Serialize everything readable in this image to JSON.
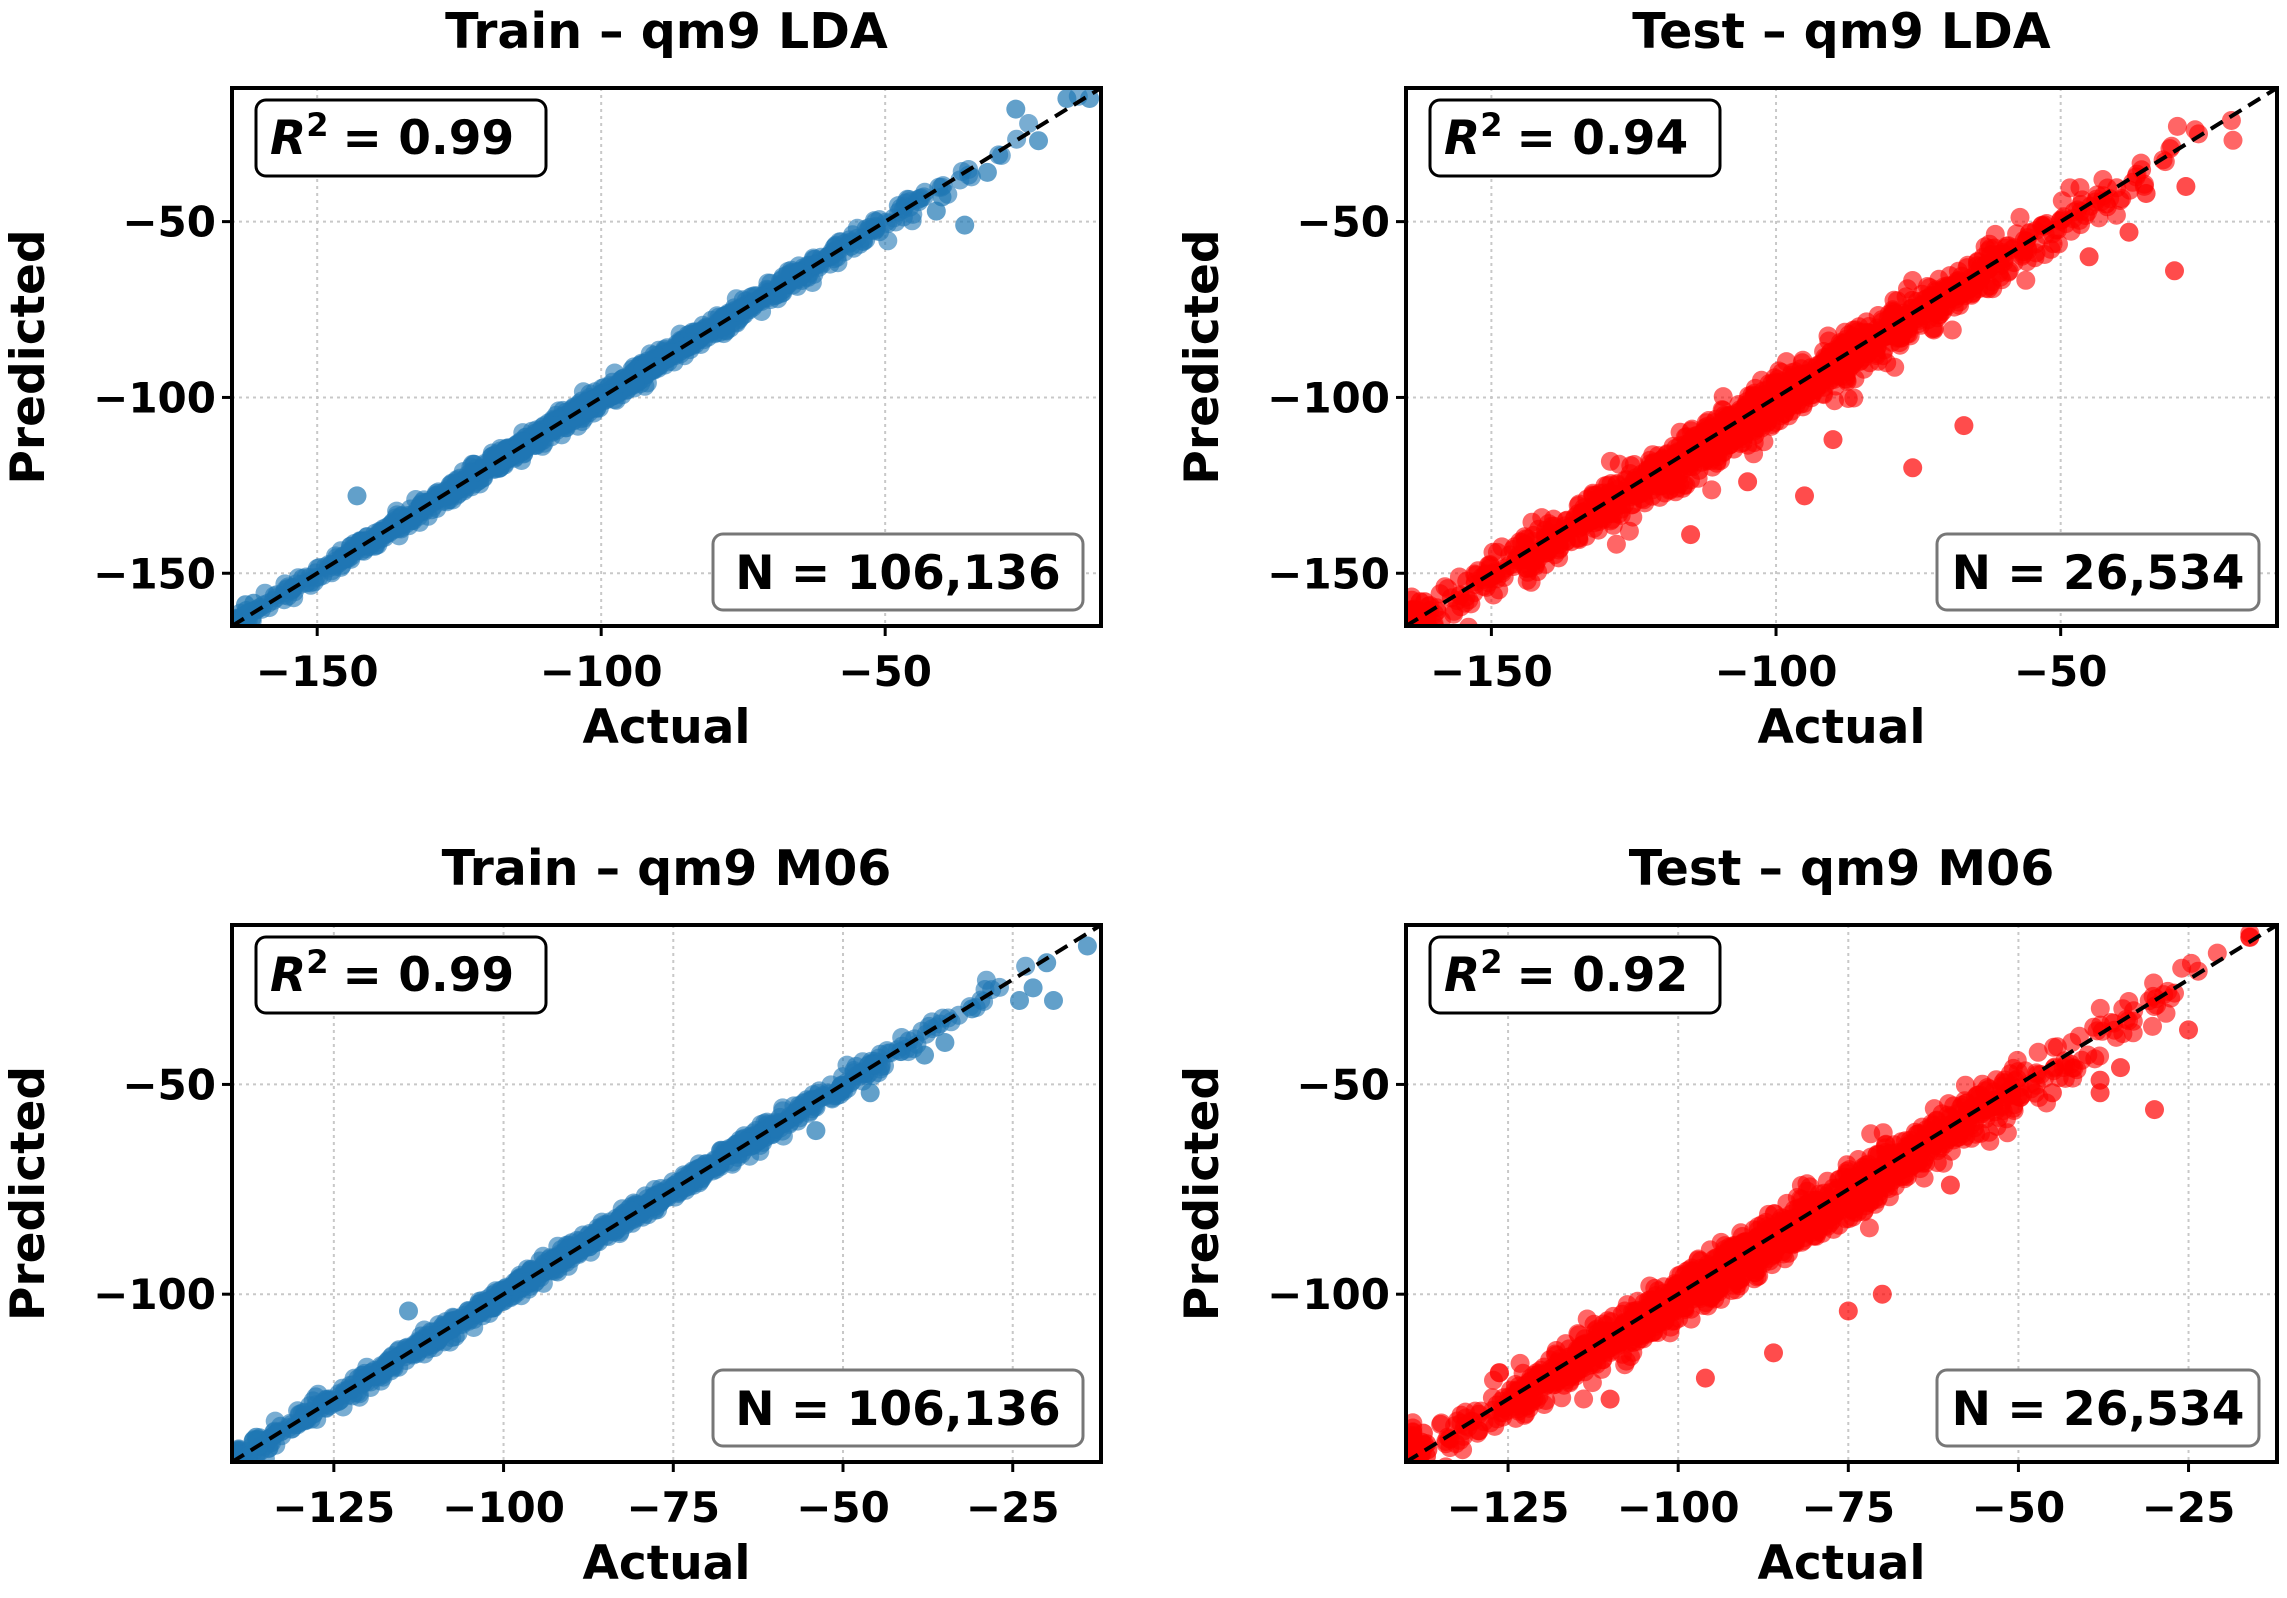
{
  "chart_data": [
    {
      "type": "scatter",
      "title": "Train – qm9 LDA",
      "xlabel": "Actual",
      "ylabel": "Predicted",
      "xlim": [
        -165,
        -12
      ],
      "ylim": [
        -165,
        -12
      ],
      "xticks": [
        -150,
        -100,
        -50
      ],
      "yticks": [
        -150,
        -100,
        -50
      ],
      "xtick_labels": [
        "−150",
        "−100",
        "−50"
      ],
      "ytick_labels": [
        "−150",
        "−100",
        "−50"
      ],
      "grid": true,
      "color": "#1f77b4",
      "r2_symbol": "R",
      "r2_exp": "2",
      "r2_value": "= 0.99",
      "n_label": "N = 106,136",
      "spread": 0.02,
      "n_points": 1300,
      "extra_points": [
        [
          -27,
          -18
        ],
        [
          -18,
          -15
        ],
        [
          -14,
          -15
        ],
        [
          -23,
          -27
        ],
        [
          -32,
          -36
        ],
        [
          -40,
          -43
        ],
        [
          -56,
          -57
        ],
        [
          -36,
          -51
        ],
        [
          -41,
          -47
        ],
        [
          -143,
          -128
        ]
      ],
      "identity_line": true
    },
    {
      "type": "scatter",
      "title": "Test – qm9 LDA",
      "xlabel": "Actual",
      "ylabel": "Predicted",
      "xlim": [
        -165,
        -12
      ],
      "ylim": [
        -165,
        -12
      ],
      "xticks": [
        -150,
        -100,
        -50
      ],
      "yticks": [
        -150,
        -100,
        -50
      ],
      "xtick_labels": [
        "−150",
        "−100",
        "−50"
      ],
      "ytick_labels": [
        "−150",
        "−100",
        "−50"
      ],
      "grid": true,
      "color": "#ff0000",
      "r2_symbol": "R",
      "r2_exp": "2",
      "r2_value": "= 0.94",
      "n_label": "N = 26,534",
      "spread": 0.05,
      "n_points": 1400,
      "extra_points": [
        [
          -28,
          -40
        ],
        [
          -35,
          -42
        ],
        [
          -42,
          -45
        ],
        [
          -45,
          -60
        ],
        [
          -30,
          -64
        ],
        [
          -38,
          -53
        ],
        [
          -67,
          -108
        ],
        [
          -76,
          -120
        ],
        [
          -95,
          -128
        ],
        [
          -115,
          -139
        ],
        [
          -90,
          -112
        ],
        [
          -105,
          -124
        ]
      ],
      "identity_line": true
    },
    {
      "type": "scatter",
      "title": "Train – qm9 M06",
      "xlabel": "Actual",
      "ylabel": "Predicted",
      "xlim": [
        -140,
        -12
      ],
      "ylim": [
        -140,
        -12
      ],
      "xticks": [
        -125,
        -100,
        -75,
        -50,
        -25
      ],
      "yticks": [
        -100,
        -50
      ],
      "xtick_labels": [
        "−125",
        "−100",
        "−75",
        "−50",
        "−25"
      ],
      "ytick_labels": [
        "−100",
        "−50"
      ],
      "grid": true,
      "color": "#1f77b4",
      "r2_symbol": "R",
      "r2_exp": "2",
      "r2_value": "= 0.99",
      "n_label": "N = 106,136",
      "spread": 0.02,
      "n_points": 1200,
      "extra_points": [
        [
          -22,
          -27
        ],
        [
          -20,
          -21
        ],
        [
          -14,
          -17
        ],
        [
          -19,
          -30
        ],
        [
          -24,
          -30
        ],
        [
          -31,
          -32
        ],
        [
          -38,
          -43
        ],
        [
          -35,
          -40
        ],
        [
          -54,
          -61
        ],
        [
          -46,
          -52
        ],
        [
          -114,
          -104
        ]
      ],
      "identity_line": true
    },
    {
      "type": "scatter",
      "title": "Test – qm9 M06",
      "xlabel": "Actual",
      "ylabel": "Predicted",
      "xlim": [
        -140,
        -12
      ],
      "ylim": [
        -140,
        -12
      ],
      "xticks": [
        -125,
        -100,
        -75,
        -50,
        -25
      ],
      "yticks": [
        -100,
        -50
      ],
      "xtick_labels": [
        "−125",
        "−100",
        "−75",
        "−50",
        "−25"
      ],
      "ytick_labels": [
        "−100",
        "−50"
      ],
      "grid": true,
      "color": "#ff0000",
      "r2_symbol": "R",
      "r2_exp": "2",
      "r2_value": "= 0.92",
      "n_label": "N = 26,534",
      "spread": 0.055,
      "n_points": 1300,
      "extra_points": [
        [
          -25,
          -37
        ],
        [
          -35,
          -46
        ],
        [
          -38,
          -52
        ],
        [
          -45,
          -52
        ],
        [
          -30,
          -56
        ],
        [
          -38,
          -49
        ],
        [
          -55,
          -56
        ],
        [
          -60,
          -74
        ],
        [
          -70,
          -100
        ],
        [
          -86,
          -114
        ],
        [
          -96,
          -120
        ],
        [
          -110,
          -125
        ],
        [
          -75,
          -104
        ]
      ],
      "identity_line": true
    }
  ]
}
